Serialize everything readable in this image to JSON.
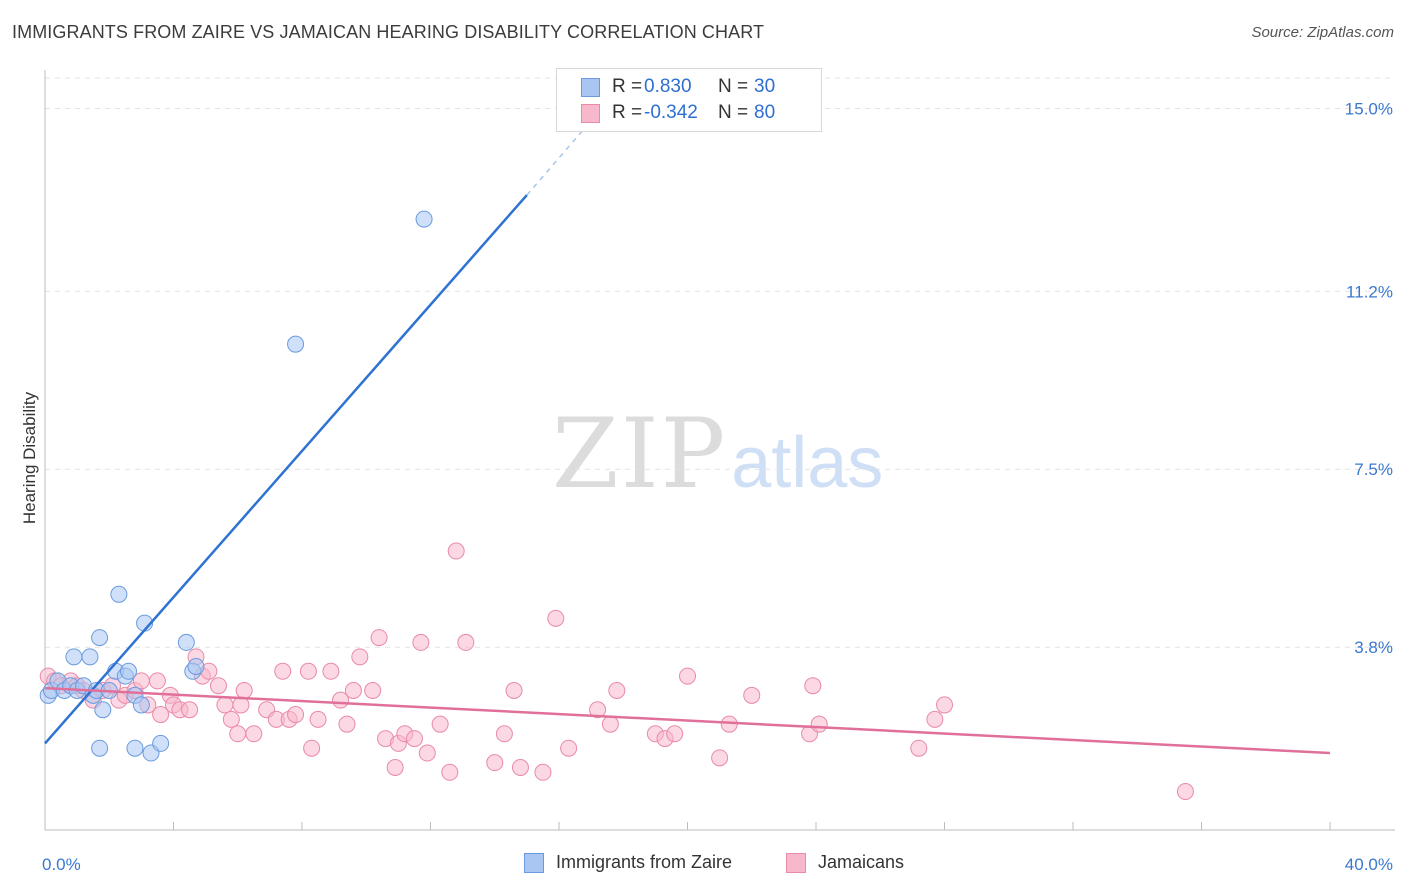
{
  "header": {
    "title": "IMMIGRANTS FROM ZAIRE VS JAMAICAN HEARING DISABILITY CORRELATION CHART",
    "source": "Source: ZipAtlas.com"
  },
  "watermark": {
    "zip": "ZIP",
    "atlas": "atlas"
  },
  "legend": {
    "r_label": "R =",
    "n_label": "N =",
    "rows": [
      {
        "r": "0.830",
        "n": "30",
        "color": "#a9c6f2",
        "border": "#6a9be0"
      },
      {
        "r": "-0.342",
        "n": "80",
        "color": "#f7b8cc",
        "border": "#e98aa8"
      }
    ]
  },
  "bottom_legend": {
    "series1": "Immigrants from Zaire",
    "series2": "Jamaicans"
  },
  "colors": {
    "zaire_fill": "#a9c6f2",
    "zaire_stroke": "#6a9be0",
    "zaire_line": "#2e72d2",
    "jam_fill": "#f7b8cc",
    "jam_stroke": "#e98aa8",
    "jam_line": "#e0709a",
    "tick_label": "#3a78d0",
    "grid": "#e2e2e2"
  },
  "chart_data": {
    "type": "scatter",
    "title": "IMMIGRANTS FROM ZAIRE VS JAMAICAN HEARING DISABILITY CORRELATION CHART",
    "xlabel": "",
    "ylabel": "Hearing Disability",
    "xlim": [
      0,
      40
    ],
    "ylim": [
      0,
      15.8
    ],
    "x_tick_labels": [
      "0.0%",
      "40.0%"
    ],
    "y_ticks": [
      3.8,
      7.5,
      11.2,
      15.0
    ],
    "y_tick_labels": [
      "3.8%",
      "7.5%",
      "11.2%",
      "15.0%"
    ],
    "grid": true,
    "legend_position": "top-center",
    "series": [
      {
        "name": "Immigrants from Zaire",
        "R": 0.83,
        "N": 30,
        "points": [
          [
            0.1,
            2.8
          ],
          [
            0.2,
            2.9
          ],
          [
            0.4,
            3.1
          ],
          [
            0.6,
            2.9
          ],
          [
            0.8,
            3.0
          ],
          [
            0.9,
            3.6
          ],
          [
            1.0,
            2.9
          ],
          [
            1.2,
            3.0
          ],
          [
            1.4,
            3.6
          ],
          [
            1.5,
            2.8
          ],
          [
            1.6,
            2.9
          ],
          [
            1.8,
            2.5
          ],
          [
            2.0,
            2.9
          ],
          [
            2.2,
            3.3
          ],
          [
            2.3,
            4.9
          ],
          [
            2.5,
            3.2
          ],
          [
            2.6,
            3.3
          ],
          [
            2.8,
            2.8
          ],
          [
            3.0,
            2.6
          ],
          [
            3.1,
            4.3
          ],
          [
            3.3,
            1.6
          ],
          [
            1.7,
            4.0
          ],
          [
            3.6,
            1.8
          ],
          [
            4.4,
            3.9
          ],
          [
            4.6,
            3.3
          ],
          [
            4.7,
            3.4
          ],
          [
            7.8,
            10.1
          ],
          [
            11.8,
            12.7
          ],
          [
            1.7,
            1.7
          ],
          [
            2.8,
            1.7
          ]
        ],
        "trend": {
          "x0": 0,
          "y0": 1.8,
          "x1": 15,
          "y1": 13.2,
          "dashed_to_x": 17.2,
          "dashed_to_y": 14.9
        }
      },
      {
        "name": "Jamaicans",
        "R": -0.342,
        "N": 80,
        "points": [
          [
            0.1,
            3.2
          ],
          [
            0.3,
            3.1
          ],
          [
            0.5,
            3.0
          ],
          [
            0.8,
            3.1
          ],
          [
            1.0,
            3.0
          ],
          [
            1.2,
            2.9
          ],
          [
            1.5,
            2.7
          ],
          [
            1.8,
            2.9
          ],
          [
            2.1,
            3.0
          ],
          [
            2.3,
            2.7
          ],
          [
            2.5,
            2.8
          ],
          [
            2.8,
            2.9
          ],
          [
            3.0,
            3.1
          ],
          [
            3.2,
            2.6
          ],
          [
            3.5,
            3.1
          ],
          [
            3.6,
            2.4
          ],
          [
            3.9,
            2.8
          ],
          [
            4.0,
            2.6
          ],
          [
            4.2,
            2.5
          ],
          [
            4.5,
            2.5
          ],
          [
            4.7,
            3.6
          ],
          [
            4.9,
            3.2
          ],
          [
            5.1,
            3.3
          ],
          [
            5.4,
            3.0
          ],
          [
            5.6,
            2.6
          ],
          [
            5.8,
            2.3
          ],
          [
            6.0,
            2.0
          ],
          [
            6.1,
            2.6
          ],
          [
            6.2,
            2.9
          ],
          [
            6.5,
            2.0
          ],
          [
            6.9,
            2.5
          ],
          [
            7.2,
            2.3
          ],
          [
            7.4,
            3.3
          ],
          [
            7.6,
            2.3
          ],
          [
            7.8,
            2.4
          ],
          [
            8.2,
            3.3
          ],
          [
            8.3,
            1.7
          ],
          [
            8.5,
            2.3
          ],
          [
            8.9,
            3.3
          ],
          [
            9.2,
            2.7
          ],
          [
            9.4,
            2.2
          ],
          [
            9.6,
            2.9
          ],
          [
            9.8,
            3.6
          ],
          [
            10.2,
            2.9
          ],
          [
            10.4,
            4.0
          ],
          [
            10.6,
            1.9
          ],
          [
            10.9,
            1.3
          ],
          [
            11.0,
            1.8
          ],
          [
            11.2,
            2.0
          ],
          [
            11.5,
            1.9
          ],
          [
            11.7,
            3.9
          ],
          [
            11.9,
            1.6
          ],
          [
            12.3,
            2.2
          ],
          [
            12.6,
            1.2
          ],
          [
            12.8,
            5.8
          ],
          [
            13.1,
            3.9
          ],
          [
            14.0,
            1.4
          ],
          [
            14.3,
            2.0
          ],
          [
            14.6,
            2.9
          ],
          [
            14.8,
            1.3
          ],
          [
            15.5,
            1.2
          ],
          [
            15.9,
            4.4
          ],
          [
            16.3,
            1.7
          ],
          [
            17.2,
            2.5
          ],
          [
            17.6,
            2.2
          ],
          [
            17.8,
            2.9
          ],
          [
            19.0,
            2.0
          ],
          [
            19.3,
            1.9
          ],
          [
            19.6,
            2.0
          ],
          [
            20.0,
            3.2
          ],
          [
            21.0,
            1.5
          ],
          [
            21.3,
            2.2
          ],
          [
            22.0,
            2.8
          ],
          [
            23.8,
            2.0
          ],
          [
            23.9,
            3.0
          ],
          [
            24.1,
            2.2
          ],
          [
            27.2,
            1.7
          ],
          [
            27.7,
            2.3
          ],
          [
            28.0,
            2.6
          ],
          [
            35.5,
            0.8
          ]
        ],
        "trend": {
          "x0": 0,
          "y0": 2.95,
          "x1": 40,
          "y1": 1.6
        }
      }
    ]
  }
}
